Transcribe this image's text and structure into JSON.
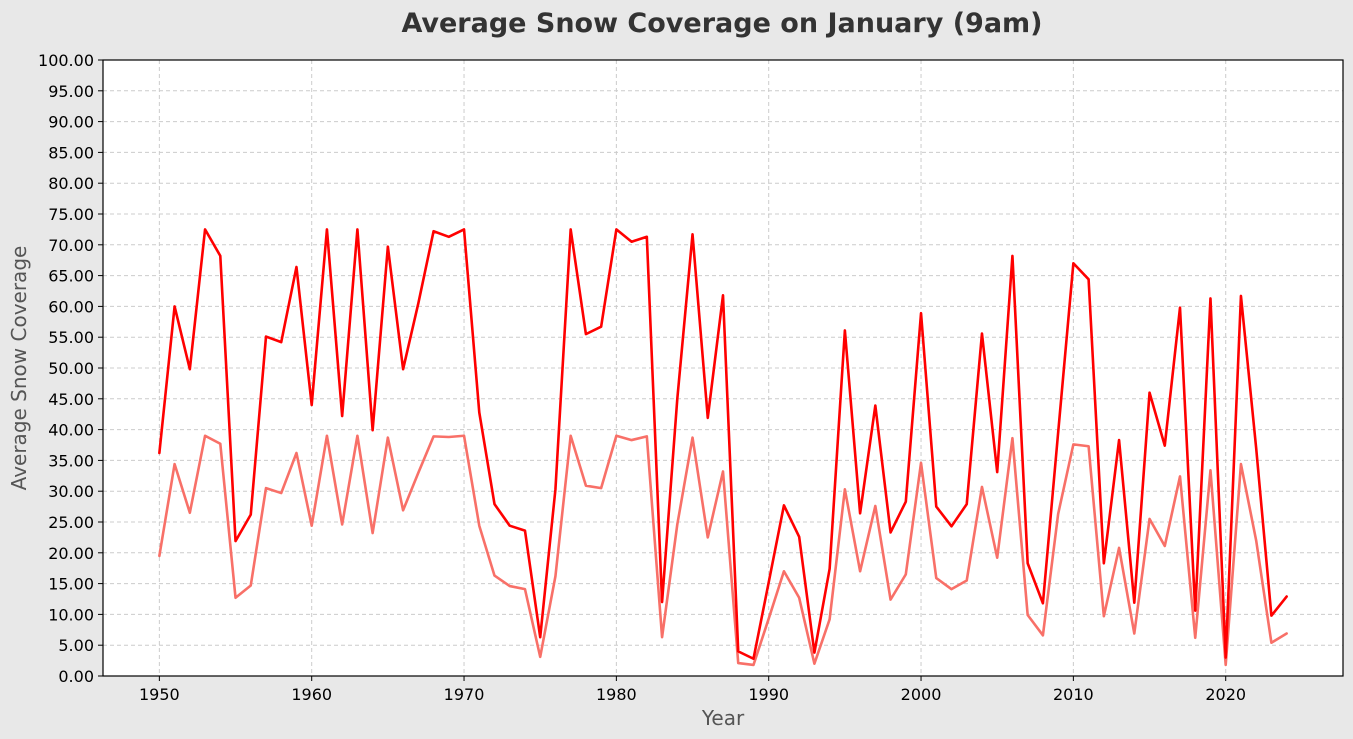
{
  "chart_data": {
    "type": "line",
    "title": "Average Snow Coverage on January (9am)",
    "xlabel": "Year",
    "ylabel": "Average Snow Coverage",
    "xlim": [
      1946.3,
      2027.7
    ],
    "ylim": [
      0,
      100
    ],
    "grid": true,
    "x_ticks": [
      1950,
      1960,
      1970,
      1980,
      1990,
      2000,
      2010,
      2020
    ],
    "y_ticks": [
      "0.00",
      "5.00",
      "10.00",
      "15.00",
      "20.00",
      "25.00",
      "30.00",
      "35.00",
      "40.00",
      "45.00",
      "50.00",
      "55.00",
      "60.00",
      "65.00",
      "70.00",
      "75.00",
      "80.00",
      "85.00",
      "90.00",
      "95.00",
      "100.00"
    ],
    "x": [
      1950,
      1951,
      1952,
      1953,
      1954,
      1955,
      1956,
      1957,
      1958,
      1959,
      1960,
      1961,
      1962,
      1963,
      1964,
      1965,
      1966,
      1967,
      1968,
      1969,
      1970,
      1971,
      1972,
      1973,
      1974,
      1975,
      1976,
      1977,
      1978,
      1979,
      1980,
      1981,
      1982,
      1983,
      1984,
      1985,
      1986,
      1987,
      1988,
      1989,
      1990,
      1991,
      1992,
      1993,
      1994,
      1995,
      1996,
      1997,
      1998,
      1999,
      2000,
      2001,
      2002,
      2003,
      2004,
      2005,
      2006,
      2007,
      2008,
      2009,
      2010,
      2011,
      2012,
      2013,
      2014,
      2015,
      2016,
      2017,
      2018,
      2019,
      2020,
      2021,
      2022,
      2023,
      2024
    ],
    "series": [
      {
        "color": "#ff0000",
        "values": [
          36.2,
          60.0,
          49.8,
          72.5,
          68.2,
          21.9,
          26.2,
          55.1,
          54.2,
          66.4,
          44.0,
          72.5,
          42.2,
          72.5,
          39.9,
          69.7,
          49.8,
          60.5,
          72.2,
          71.3,
          72.5,
          42.8,
          27.9,
          24.4,
          23.6,
          6.3,
          30.3,
          72.5,
          55.5,
          56.7,
          72.5,
          70.5,
          71.3,
          12.0,
          45.0,
          71.7,
          41.9,
          61.8,
          4.0,
          2.8,
          15.2,
          27.7,
          22.6,
          3.8,
          17.4,
          56.1,
          26.4,
          43.9,
          23.3,
          28.3,
          58.9,
          27.5,
          24.3,
          27.9,
          55.6,
          33.1,
          68.2,
          18.3,
          11.8,
          39.5,
          67.0,
          64.4,
          18.3,
          38.3,
          11.9,
          46.0,
          37.4,
          59.8,
          10.6,
          61.3,
          3.0,
          61.7,
          37.0,
          9.8,
          12.9
        ]
      },
      {
        "color": "#f87068",
        "values": [
          19.5,
          34.4,
          26.5,
          39.0,
          37.7,
          12.7,
          14.7,
          30.5,
          29.7,
          36.2,
          24.4,
          39.0,
          24.6,
          39.0,
          23.2,
          38.7,
          26.9,
          33.0,
          38.9,
          38.8,
          39.0,
          24.4,
          16.3,
          14.6,
          14.1,
          3.1,
          16.2,
          39.0,
          30.9,
          30.5,
          39.0,
          38.3,
          38.9,
          6.3,
          24.6,
          38.7,
          22.5,
          33.2,
          2.1,
          1.8,
          9.3,
          17.0,
          12.7,
          2.0,
          9.2,
          30.3,
          17.0,
          27.6,
          12.4,
          16.5,
          34.6,
          15.9,
          14.1,
          15.5,
          30.7,
          19.2,
          38.6,
          9.9,
          6.6,
          26.3,
          37.6,
          37.3,
          9.7,
          20.8,
          6.9,
          25.5,
          21.1,
          32.4,
          6.2,
          33.4,
          1.8,
          34.4,
          22.0,
          5.4,
          6.9
        ]
      }
    ]
  }
}
